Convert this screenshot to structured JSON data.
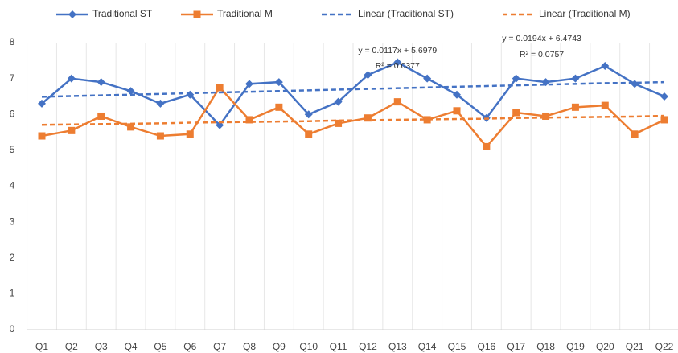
{
  "chart_data": {
    "type": "line",
    "categories": [
      "Q1",
      "Q2",
      "Q3",
      "Q4",
      "Q5",
      "Q6",
      "Q7",
      "Q8",
      "Q9",
      "Q10",
      "Q11",
      "Q12",
      "Q13",
      "Q14",
      "Q15",
      "Q16",
      "Q17",
      "Q18",
      "Q19",
      "Q20",
      "Q21",
      "Q22"
    ],
    "series": [
      {
        "name": "Traditional ST",
        "color": "#4472c4",
        "marker": "diamond",
        "values": [
          6.3,
          7.0,
          6.9,
          6.65,
          6.3,
          6.55,
          5.7,
          6.85,
          6.9,
          6.0,
          6.35,
          7.1,
          7.45,
          7.0,
          6.55,
          5.9,
          7.0,
          6.9,
          7.0,
          7.35,
          6.85,
          6.5
        ]
      },
      {
        "name": "Traditional M",
        "color": "#ed7d31",
        "marker": "square",
        "values": [
          5.4,
          5.55,
          5.95,
          5.65,
          5.4,
          5.45,
          6.75,
          5.85,
          6.2,
          5.45,
          5.75,
          5.9,
          6.35,
          5.85,
          6.1,
          5.1,
          6.05,
          5.95,
          6.2,
          6.25,
          5.45,
          5.85
        ]
      },
      {
        "name": "Linear (Traditional ST)",
        "color": "#4472c4",
        "dashed": true,
        "values": [
          6.49,
          6.51,
          6.53,
          6.55,
          6.57,
          6.59,
          6.61,
          6.63,
          6.65,
          6.67,
          6.69,
          6.71,
          6.73,
          6.75,
          6.77,
          6.79,
          6.81,
          6.83,
          6.85,
          6.87,
          6.88,
          6.9
        ]
      },
      {
        "name": "Linear (Traditional M)",
        "color": "#ed7d31",
        "dashed": true,
        "values": [
          5.71,
          5.72,
          5.73,
          5.74,
          5.75,
          5.77,
          5.78,
          5.79,
          5.8,
          5.81,
          5.83,
          5.84,
          5.85,
          5.86,
          5.87,
          5.88,
          5.9,
          5.91,
          5.92,
          5.93,
          5.94,
          5.96
        ]
      }
    ],
    "annotations": [
      "y = 0.0117x + 5.6979",
      "R² = 0.0377",
      "y = 0.0194x + 6.4743",
      "R² = 0.0757"
    ],
    "ylim": [
      0,
      8
    ],
    "yticks": [
      0,
      1,
      2,
      3,
      4,
      5,
      6,
      7,
      8
    ],
    "grid": true
  }
}
